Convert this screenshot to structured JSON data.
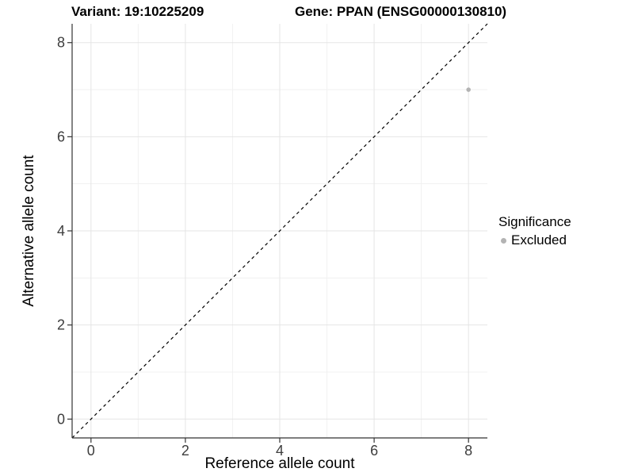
{
  "chart_data": {
    "type": "scatter",
    "title_left": "Variant: 19:10225209",
    "title_right": "Gene: PPAN (ENSG00000130810)",
    "xlabel": "Reference allele count",
    "ylabel": "Alternative allele count",
    "xlim": [
      -0.4,
      8.4
    ],
    "ylim": [
      -0.4,
      8.4
    ],
    "xticks": [
      0,
      2,
      4,
      6,
      8
    ],
    "yticks": [
      0,
      2,
      4,
      6,
      8
    ],
    "xminor": [
      1,
      3,
      5,
      7
    ],
    "yminor": [
      1,
      3,
      5,
      7
    ],
    "grid": true,
    "points": [
      {
        "x": 8,
        "y": 7,
        "series": "Excluded"
      }
    ],
    "abline": {
      "slope": 1,
      "intercept": 0,
      "style": "dashed"
    },
    "legend": {
      "title": "Significance",
      "position": "right",
      "items": [
        {
          "label": "Excluded",
          "color": "#b3b3b3"
        }
      ]
    },
    "colors": {
      "background": "#ffffff",
      "grid_major": "#e5e5e5",
      "grid_minor": "#f1f1f1",
      "axis": "#333333",
      "tick_text": "#3d3d3d",
      "abline": "#000000",
      "point": "#b3b3b3"
    }
  }
}
